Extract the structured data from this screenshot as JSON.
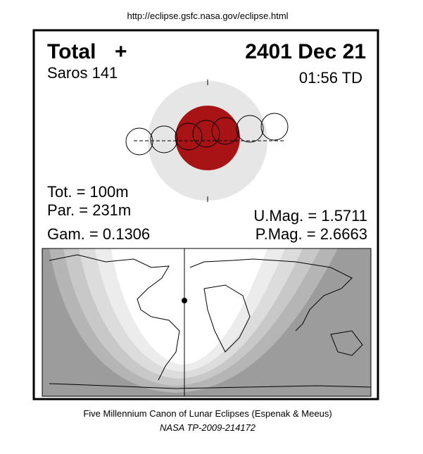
{
  "url": "http://eclipse.gsfc.nasa.gov/eclipse.html",
  "header": {
    "type": "Total",
    "symbol": "+",
    "date": "2401 Dec 21",
    "saros": "Saros 141",
    "time": "01:56 TD"
  },
  "stats": {
    "tot": "Tot. = 100m",
    "par": "Par. = 231m",
    "gam": "Gam. = 0.1306",
    "umag": "U.Mag. = 1.5711",
    "pmag": "P.Mag. = 2.6663"
  },
  "footer": {
    "line1": "Five Millennium Canon of Lunar Eclipses (Espenak & Meeus)",
    "line2": "NASA TP-2009-214172"
  }
}
